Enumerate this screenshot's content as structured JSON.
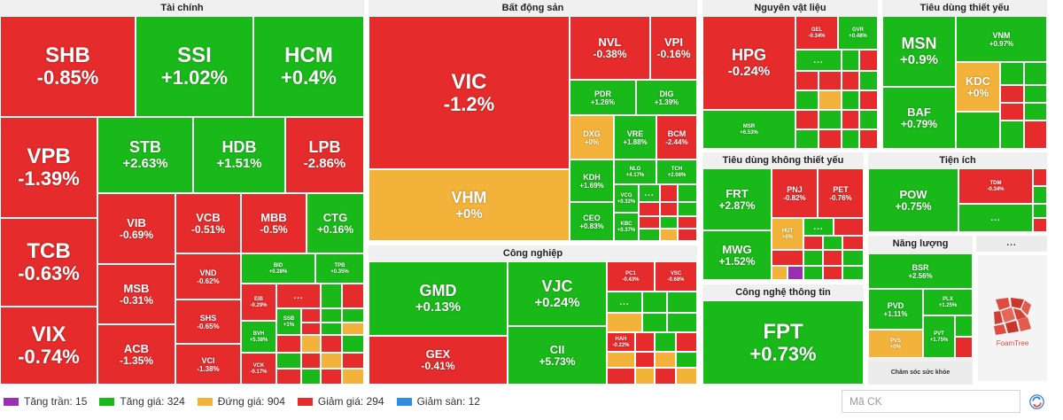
{
  "groups": {
    "tai_chinh": "Tài chính",
    "bat_dong_san": "Bất động sản",
    "nguyen_vat_lieu": "Nguyên vật liệu",
    "tieu_dung_thiet_yeu": "Tiêu dùng thiết yếu",
    "tieu_dung_khong_thiet_yeu": "Tiêu dùng không thiết yếu",
    "tien_ich": "Tiện ích",
    "cong_nghiep": "Công nghiệp",
    "cong_nghe_thong_tin": "Công nghệ thông tin",
    "nang_luong": "Năng lượng",
    "cham_soc_suc_khoe": "Chăm sóc sức khỏe"
  },
  "more_label": "...",
  "tiles": {
    "SHB": {
      "sym": "SHB",
      "pct": "-0.85%"
    },
    "SSI": {
      "sym": "SSI",
      "pct": "+1.02%"
    },
    "HCM": {
      "sym": "HCM",
      "pct": "+0.4%"
    },
    "VPB": {
      "sym": "VPB",
      "pct": "-1.39%"
    },
    "STB": {
      "sym": "STB",
      "pct": "+2.63%"
    },
    "HDB": {
      "sym": "HDB",
      "pct": "+1.51%"
    },
    "LPB": {
      "sym": "LPB",
      "pct": "-2.86%"
    },
    "TCB": {
      "sym": "TCB",
      "pct": "-0.63%"
    },
    "VIB": {
      "sym": "VIB",
      "pct": "-0.69%"
    },
    "VCB": {
      "sym": "VCB",
      "pct": "-0.51%"
    },
    "MBB": {
      "sym": "MBB",
      "pct": "-0.5%"
    },
    "CTG": {
      "sym": "CTG",
      "pct": "+0.16%"
    },
    "VIX": {
      "sym": "VIX",
      "pct": "-0.74%"
    },
    "MSB": {
      "sym": "MSB",
      "pct": "-0.31%"
    },
    "ACB": {
      "sym": "ACB",
      "pct": "-1.35%"
    },
    "VND": {
      "sym": "VND",
      "pct": "-0.62%"
    },
    "SHS": {
      "sym": "SHS",
      "pct": "-0.65%"
    },
    "VCI": {
      "sym": "VCI",
      "pct": "-1.38%"
    },
    "BID": {
      "sym": "BID",
      "pct": "+0.28%"
    },
    "TPB": {
      "sym": "TPB",
      "pct": "+0.35%"
    },
    "EIB": {
      "sym": "EIB",
      "pct": "-0.29%"
    },
    "SSB": {
      "sym": "SSB",
      "pct": "+1%"
    },
    "BVH": {
      "sym": "BVH",
      "pct": "+5.38%"
    },
    "VCK": {
      "sym": "VCK",
      "pct": "-0.17%"
    },
    "VIC": {
      "sym": "VIC",
      "pct": "-1.2%"
    },
    "VHM": {
      "sym": "VHM",
      "pct": "+0%"
    },
    "NVL": {
      "sym": "NVL",
      "pct": "-0.38%"
    },
    "VPI": {
      "sym": "VPI",
      "pct": "-0.16%"
    },
    "PDR": {
      "sym": "PDR",
      "pct": "+1.26%"
    },
    "DIG": {
      "sym": "DIG",
      "pct": "+1.39%"
    },
    "DXG": {
      "sym": "DXG",
      "pct": "+0%"
    },
    "VRE": {
      "sym": "VRE",
      "pct": "+1.88%"
    },
    "BCM": {
      "sym": "BCM",
      "pct": "-2.44%"
    },
    "KDH": {
      "sym": "KDH",
      "pct": "+1.69%"
    },
    "NLG": {
      "sym": "NLG",
      "pct": "+4.17%"
    },
    "TCH": {
      "sym": "TCH",
      "pct": "+2.08%"
    },
    "CEO": {
      "sym": "CEO",
      "pct": "+0.83%"
    },
    "VCG": {
      "sym": "VCG",
      "pct": "+0.32%"
    },
    "KBC": {
      "sym": "KBC",
      "pct": "+0.37%"
    },
    "HPG": {
      "sym": "HPG",
      "pct": "-0.24%"
    },
    "GEL": {
      "sym": "GEL",
      "pct": "-0.34%"
    },
    "GVR": {
      "sym": "GVR",
      "pct": "+0.48%"
    },
    "MSR": {
      "sym": "MSR",
      "pct": "+6.53%"
    },
    "MSN": {
      "sym": "MSN",
      "pct": "+0.9%"
    },
    "VNM": {
      "sym": "VNM",
      "pct": "+0.97%"
    },
    "KDC": {
      "sym": "KDC",
      "pct": "+0%"
    },
    "BAF": {
      "sym": "BAF",
      "pct": "+0.79%"
    },
    "FRT": {
      "sym": "FRT",
      "pct": "+2.87%"
    },
    "PNJ": {
      "sym": "PNJ",
      "pct": "-0.82%"
    },
    "PET": {
      "sym": "PET",
      "pct": "-0.76%"
    },
    "HUT": {
      "sym": "HUT",
      "pct": "+0%"
    },
    "MWG": {
      "sym": "MWG",
      "pct": "+1.52%"
    },
    "POW": {
      "sym": "POW",
      "pct": "+0.75%"
    },
    "TDM": {
      "sym": "TDM",
      "pct": "-0.34%"
    },
    "GMD": {
      "sym": "GMD",
      "pct": "+0.13%"
    },
    "VJC": {
      "sym": "VJC",
      "pct": "+0.24%"
    },
    "PC1": {
      "sym": "PC1",
      "pct": "-0.43%"
    },
    "VSC": {
      "sym": "VSC",
      "pct": "-0.68%"
    },
    "HAH": {
      "sym": "HAH",
      "pct": "-0.22%"
    },
    "GEX": {
      "sym": "GEX",
      "pct": "-0.41%"
    },
    "CII": {
      "sym": "CII",
      "pct": "+5.73%"
    },
    "FPT": {
      "sym": "FPT",
      "pct": "+0.73%"
    },
    "BSR": {
      "sym": "BSR",
      "pct": "+2.56%"
    },
    "PVD": {
      "sym": "PVD",
      "pct": "+1.11%"
    },
    "PLX": {
      "sym": "PLX",
      "pct": "+1.25%"
    },
    "PVS": {
      "sym": "PVS",
      "pct": "+0%"
    },
    "PVT": {
      "sym": "PVT",
      "pct": "+1.75%"
    }
  },
  "legend": [
    {
      "label": "Tăng trần: 15",
      "color": "#9a2fb3"
    },
    {
      "label": "Tăng giá: 324",
      "color": "#19b919"
    },
    {
      "label": "Đứng giá: 904",
      "color": "#f3b23a"
    },
    {
      "label": "Giảm giá: 294",
      "color": "#e52b2b"
    },
    {
      "label": "Giảm sàn: 12",
      "color": "#2f8ee0"
    }
  ],
  "search": {
    "placeholder": "Mã CK"
  },
  "logo_text": "FoamTree",
  "colors": {
    "up": "#19b919",
    "down": "#e52b2b",
    "flat": "#f3b23a",
    "ceiling": "#9a2fb3",
    "floor": "#2f8ee0"
  }
}
